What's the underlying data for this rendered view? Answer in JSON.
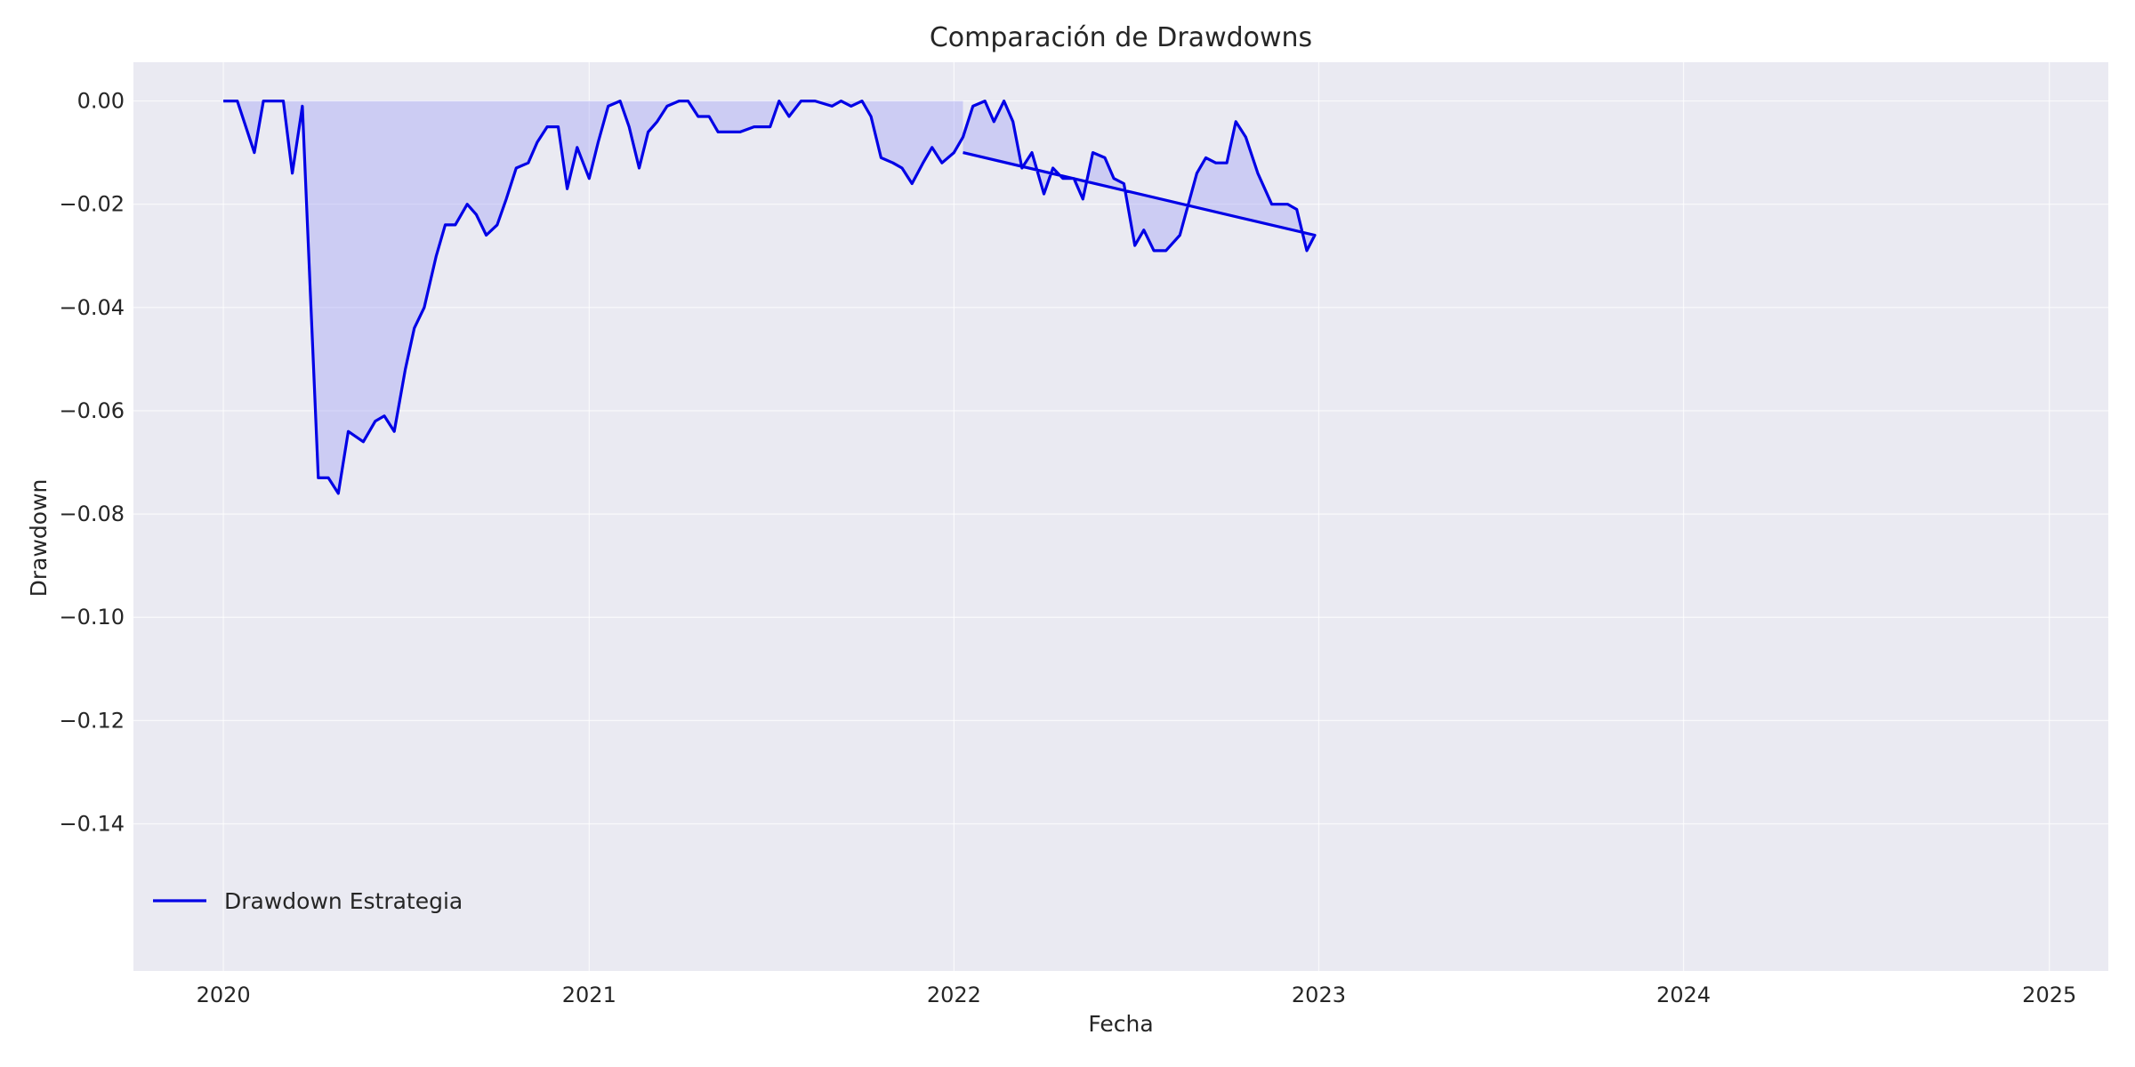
{
  "chart_data": {
    "type": "line",
    "title": "Comparación de Drawdowns",
    "xlabel": "Fecha",
    "ylabel": "Drawdown",
    "xlim": [
      "2019-10-03",
      "2025-03-01"
    ],
    "ylim": [
      -0.1685,
      0.0075
    ],
    "x_ticks": [
      "2020",
      "2021",
      "2022",
      "2023",
      "2024",
      "2025"
    ],
    "x_tick_dates": [
      "2020-01-01",
      "2021-01-01",
      "2022-01-01",
      "2023-01-01",
      "2024-01-01",
      "2025-01-01"
    ],
    "y_ticks": [
      0.0,
      -0.02,
      -0.04,
      -0.06,
      -0.08,
      -0.1,
      -0.12,
      -0.14
    ],
    "y_tick_labels": [
      "0.00",
      "−0.02",
      "−0.04",
      "−0.06",
      "−0.08",
      "−0.10",
      "−0.12",
      "−0.14"
    ],
    "grid": true,
    "legend_position": "bottom-left",
    "series": [
      {
        "name": "Drawdown Estrategia",
        "color": "#0000e6",
        "fill": "#8c8cf5",
        "points": [
          [
            "2020-01-01",
            0.0
          ],
          [
            "2020-01-15",
            0.0
          ],
          [
            "2020-02-01",
            -0.01
          ],
          [
            "2020-02-10",
            0.0
          ],
          [
            "2020-03-01",
            0.0
          ],
          [
            "2020-03-10",
            -0.014
          ],
          [
            "2020-03-20",
            -0.001
          ],
          [
            "2020-04-05",
            -0.073
          ],
          [
            "2020-04-15",
            -0.073
          ],
          [
            "2020-04-25",
            -0.076
          ],
          [
            "2020-05-05",
            -0.064
          ],
          [
            "2020-05-20",
            -0.066
          ],
          [
            "2020-06-01",
            -0.062
          ],
          [
            "2020-06-10",
            -0.061
          ],
          [
            "2020-06-20",
            -0.064
          ],
          [
            "2020-07-01",
            -0.052
          ],
          [
            "2020-07-10",
            -0.044
          ],
          [
            "2020-07-20",
            -0.04
          ],
          [
            "2020-08-01",
            -0.03
          ],
          [
            "2020-08-10",
            -0.024
          ],
          [
            "2020-08-20",
            -0.024
          ],
          [
            "2020-09-01",
            -0.02
          ],
          [
            "2020-09-10",
            -0.022
          ],
          [
            "2020-09-20",
            -0.026
          ],
          [
            "2020-10-01",
            -0.024
          ],
          [
            "2020-10-10",
            -0.019
          ],
          [
            "2020-10-20",
            -0.013
          ],
          [
            "2020-11-01",
            -0.012
          ],
          [
            "2020-11-10",
            -0.008
          ],
          [
            "2020-11-20",
            -0.005
          ],
          [
            "2020-12-01",
            -0.005
          ],
          [
            "2020-12-10",
            -0.017
          ],
          [
            "2020-12-20",
            -0.009
          ],
          [
            "2021-01-01",
            -0.015
          ],
          [
            "2021-01-10",
            -0.008
          ],
          [
            "2021-01-20",
            -0.001
          ],
          [
            "2021-02-01",
            0.0
          ],
          [
            "2021-02-10",
            -0.005
          ],
          [
            "2021-02-20",
            -0.013
          ],
          [
            "2021-03-01",
            -0.006
          ],
          [
            "2021-03-10",
            -0.004
          ],
          [
            "2021-03-20",
            -0.001
          ],
          [
            "2021-04-01",
            0.0
          ],
          [
            "2021-04-10",
            0.0
          ],
          [
            "2021-04-20",
            -0.003
          ],
          [
            "2021-05-01",
            -0.003
          ],
          [
            "2021-05-10",
            -0.006
          ],
          [
            "2021-05-20",
            -0.006
          ],
          [
            "2021-06-01",
            -0.006
          ],
          [
            "2021-06-15",
            -0.005
          ],
          [
            "2021-07-01",
            -0.005
          ],
          [
            "2021-07-10",
            0.0
          ],
          [
            "2021-07-20",
            -0.003
          ],
          [
            "2021-08-01",
            0.0
          ],
          [
            "2021-08-15",
            0.0
          ],
          [
            "2021-09-01",
            -0.001
          ],
          [
            "2021-09-10",
            0.0
          ],
          [
            "2021-09-20",
            -0.001
          ],
          [
            "2021-10-01",
            0.0
          ],
          [
            "2021-10-10",
            -0.003
          ],
          [
            "2021-10-20",
            -0.011
          ],
          [
            "2021-11-01",
            -0.012
          ],
          [
            "2021-11-10",
            -0.013
          ],
          [
            "2021-11-20",
            -0.016
          ],
          [
            "2021-12-01",
            -0.012
          ],
          [
            "2021-12-10",
            -0.009
          ],
          [
            "2021-12-20",
            -0.012
          ],
          [
            "2022-01-01",
            -0.01
          ],
          [
            "2022-01-10",
            -0.007
          ],
          [
            "2022-01-20",
            -0.001
          ],
          [
            "2022-02-01",
            0.0
          ],
          [
            "2022-02-10",
            -0.004
          ],
          [
            "2022-02-20",
            0.0
          ],
          [
            "2022-03-01",
            -0.004
          ],
          [
            "2022-03-10",
            -0.013
          ],
          [
            "2022-03-20",
            -0.01
          ],
          [
            "2022-04-01",
            -0.018
          ],
          [
            "2022-04-10",
            -0.013
          ],
          [
            "2022-04-20",
            -0.015
          ],
          [
            "2022-05-01",
            -0.015
          ],
          [
            "2022-05-10",
            -0.019
          ],
          [
            "2022-05-20",
            -0.01
          ],
          [
            "2022-06-01",
            -0.011
          ],
          [
            "2022-06-10",
            -0.015
          ],
          [
            "2022-06-20",
            -0.016
          ],
          [
            "2022-07-01",
            -0.028
          ],
          [
            "2022-07-10",
            -0.025
          ],
          [
            "2022-07-20",
            -0.029
          ],
          [
            "2022-08-01",
            -0.029
          ],
          [
            "2022-08-15",
            -0.026
          ],
          [
            "2022-09-01",
            -0.014
          ],
          [
            "2022-09-10",
            -0.011
          ],
          [
            "2022-09-20",
            -0.012
          ],
          [
            "2022-10-01",
            -0.012
          ],
          [
            "2022-10-10",
            -0.004
          ],
          [
            "2022-10-20",
            -0.007
          ],
          [
            "2022-11-01",
            -0.014
          ],
          [
            "2022-11-15",
            -0.02
          ],
          [
            "2022-12-01",
            -0.02
          ],
          [
            "2022-12-10",
            -0.021
          ],
          [
            "2022-12-20",
            -0.029
          ],
          [
            "2022-12-28",
            -0.026
          ],
          [
            "2022-01-10",
            -0.01
          ]
        ]
      }
    ]
  }
}
